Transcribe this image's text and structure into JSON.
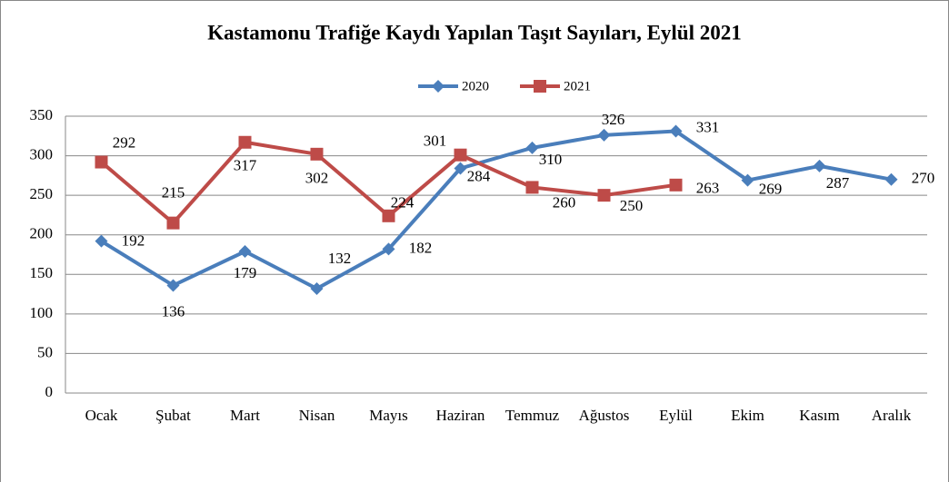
{
  "chart_data": {
    "type": "line",
    "title": "Kastamonu Trafiğe Kaydı Yapılan Taşıt Sayıları, Eylül 2021",
    "categories": [
      "Ocak",
      "Şubat",
      "Mart",
      "Nisan",
      "Mayıs",
      "Haziran",
      "Temmuz",
      "Ağustos",
      "Eylül",
      "Ekim",
      "Kasım",
      "Aralık"
    ],
    "series": [
      {
        "name": "2020",
        "color": "#4a7ebb",
        "values": [
          192,
          136,
          179,
          132,
          182,
          284,
          310,
          326,
          331,
          269,
          287,
          270
        ]
      },
      {
        "name": "2021",
        "color": "#be4b48",
        "values": [
          292,
          215,
          317,
          302,
          224,
          301,
          260,
          250,
          263,
          null,
          null,
          null
        ]
      }
    ],
    "ylim": [
      0,
      350
    ],
    "yticks": [
      0,
      50,
      100,
      150,
      200,
      250,
      300,
      350
    ],
    "grid": true,
    "legend": "top"
  }
}
